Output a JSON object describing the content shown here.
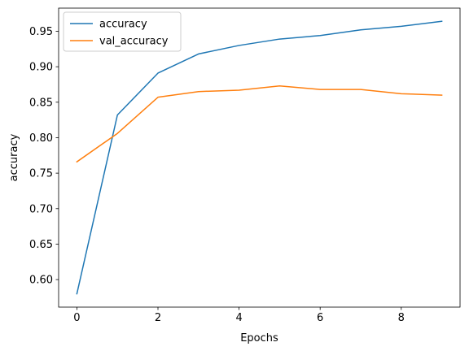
{
  "chart_data": {
    "type": "line",
    "title": "",
    "xlabel": "Epochs",
    "ylabel": "accuracy",
    "x": [
      0,
      1,
      2,
      3,
      4,
      5,
      6,
      7,
      8,
      9
    ],
    "xlim": [
      -0.45,
      9.45
    ],
    "ylim": [
      0.5612,
      0.9826
    ],
    "xticks": [
      0,
      2,
      4,
      6,
      8
    ],
    "xtick_labels": [
      "0",
      "2",
      "4",
      "6",
      "8"
    ],
    "yticks": [
      0.6,
      0.65,
      0.7,
      0.75,
      0.8,
      0.85,
      0.9,
      0.95
    ],
    "ytick_labels": [
      "0.60",
      "0.65",
      "0.70",
      "0.75",
      "0.80",
      "0.85",
      "0.90",
      "0.95"
    ],
    "grid": false,
    "legend_position": "top-left",
    "series": [
      {
        "name": "accuracy",
        "color": "#1f77b4",
        "values": [
          0.58,
          0.832,
          0.891,
          0.918,
          0.93,
          0.939,
          0.944,
          0.952,
          0.957,
          0.964
        ]
      },
      {
        "name": "val_accuracy",
        "color": "#ff7f0e",
        "values": [
          0.766,
          0.806,
          0.857,
          0.865,
          0.867,
          0.873,
          0.868,
          0.868,
          0.862,
          0.86
        ]
      }
    ]
  }
}
